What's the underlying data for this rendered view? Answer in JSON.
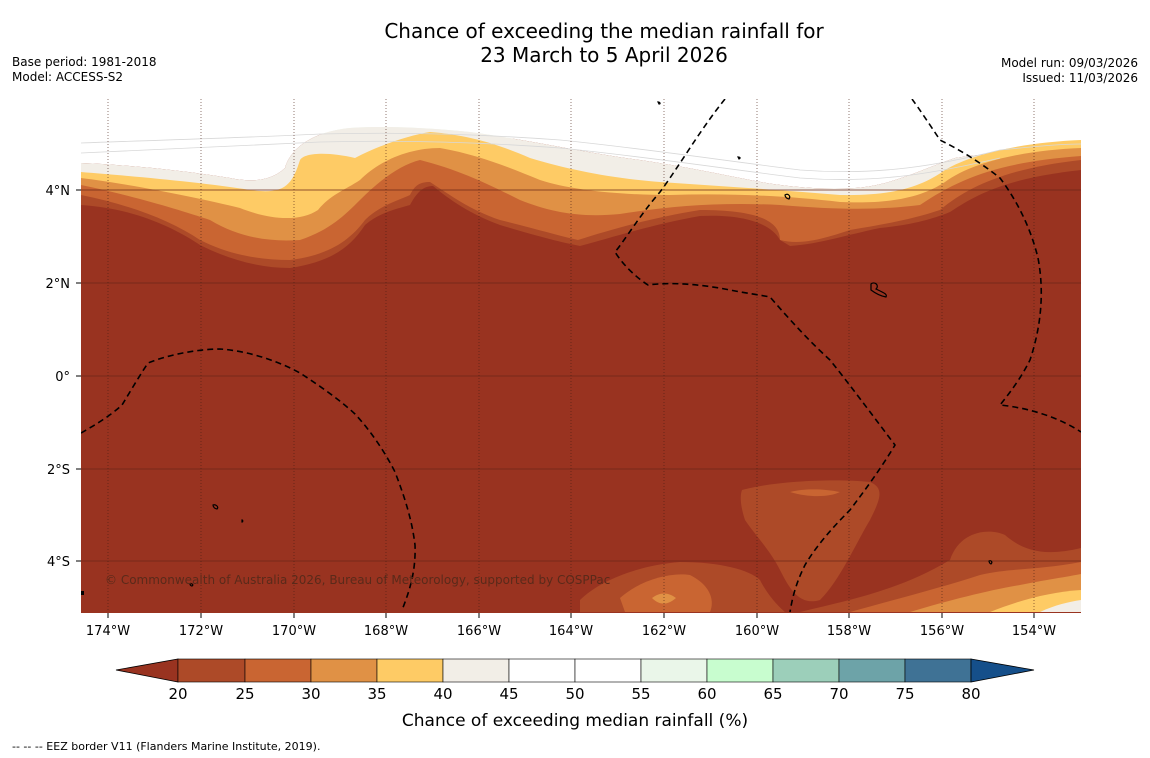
{
  "title": {
    "line1": "Chance of exceeding the median rainfall for",
    "line2": "23 March to 5 April 2026"
  },
  "meta": {
    "base_period": "Base period: 1981-2018",
    "model": "Model: ACCESS-S2",
    "model_run": "Model run: 09/03/2026",
    "issued": "Issued: 11/03/2026"
  },
  "map": {
    "lat_ticks": [
      "4°N",
      "2°N",
      "0°",
      "2°S",
      "4°S"
    ],
    "lon_ticks": [
      "174°W",
      "172°W",
      "170°W",
      "168°W",
      "166°W",
      "164°W",
      "162°W",
      "160°W",
      "158°W",
      "156°W",
      "154°W"
    ],
    "copyright": "© Commonwealth of Australia 2026, Bureau of Meteorology, supported by COSPPac",
    "background_color": "#993320"
  },
  "colorbar": {
    "ticks": [
      "20",
      "25",
      "30",
      "35",
      "40",
      "45",
      "50",
      "55",
      "60",
      "65",
      "70",
      "75",
      "80"
    ],
    "colors": [
      "#993320",
      "#ad4a28",
      "#c96532",
      "#e09145",
      "#fecb65",
      "#f2eee7",
      "#ffffff",
      "#ffffff",
      "#eaf6e9",
      "#c8fdcf",
      "#9ccfba",
      "#6da3a8",
      "#3f7295",
      "#154f8a"
    ],
    "title": "Chance of exceeding median rainfall (%)"
  },
  "footnote": "--  --  -- EEZ border V11 (Flanders Marine Institute, 2019)."
}
